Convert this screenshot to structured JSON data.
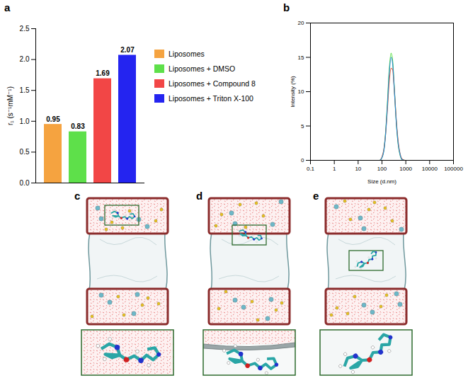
{
  "chart_data": [
    {
      "panel": "a",
      "type": "bar",
      "y_label": "r₁ (s⁻¹mM⁻¹)",
      "categories": [
        "Liposomes",
        "Liposomes + DMSO",
        "Liposomes + Compound 8",
        "Liposomes + Triton X-100"
      ],
      "values": [
        0.95,
        0.83,
        1.69,
        2.07
      ],
      "colors": [
        "#f5a340",
        "#5ee04a",
        "#f24646",
        "#2424f0"
      ],
      "ylim": [
        0,
        2.5
      ],
      "yticks": [
        {
          "value": 0,
          "label": "0.0"
        },
        {
          "value": 0.5,
          "label": "0.5"
        },
        {
          "value": 1,
          "label": "1.0"
        },
        {
          "value": 1.5,
          "label": "1.5"
        },
        {
          "value": 2,
          "label": "2.0"
        },
        {
          "value": 2.5,
          "label": "2.5"
        }
      ],
      "data_labels": true,
      "tick_labels": "y",
      "legend": "right"
    },
    {
      "panel": "b",
      "type": "line",
      "x_label": "Size (d.nm)",
      "y_label": "Intensity (%)",
      "log": "x",
      "x": [
        60,
        80,
        100,
        120,
        140,
        170,
        200,
        240,
        280,
        330,
        400,
        480,
        580,
        700,
        900
      ],
      "series": [
        {
          "color": "#5ee04a",
          "values": [
            0,
            0,
            0.4,
            1.5,
            3.8,
            8.5,
            13,
            15.6,
            14.5,
            10.5,
            5.5,
            2.3,
            0.7,
            0.1,
            0
          ]
        },
        {
          "color": "#f0603a",
          "values": [
            0,
            0,
            0.5,
            1.6,
            3.6,
            7.6,
            11.3,
            13.4,
            13.2,
            10.2,
            5.8,
            2.7,
            0.9,
            0.2,
            0
          ]
        },
        {
          "color": "#2a8ad0",
          "values": [
            0,
            0,
            0.4,
            1.4,
            3.6,
            8.1,
            12.5,
            15,
            14.1,
            10.3,
            5.5,
            2.4,
            0.8,
            0.1,
            0
          ]
        }
      ],
      "xlim": [
        0.1,
        100000
      ],
      "xticks": [
        0.1,
        1,
        10,
        100,
        1000,
        10000,
        100000
      ],
      "ylim": [
        0,
        20
      ],
      "yticks": [
        0,
        5,
        10,
        15,
        20
      ]
    }
  ],
  "panels": [
    {
      "letter": "c"
    },
    {
      "letter": "d"
    },
    {
      "letter": "e"
    }
  ]
}
